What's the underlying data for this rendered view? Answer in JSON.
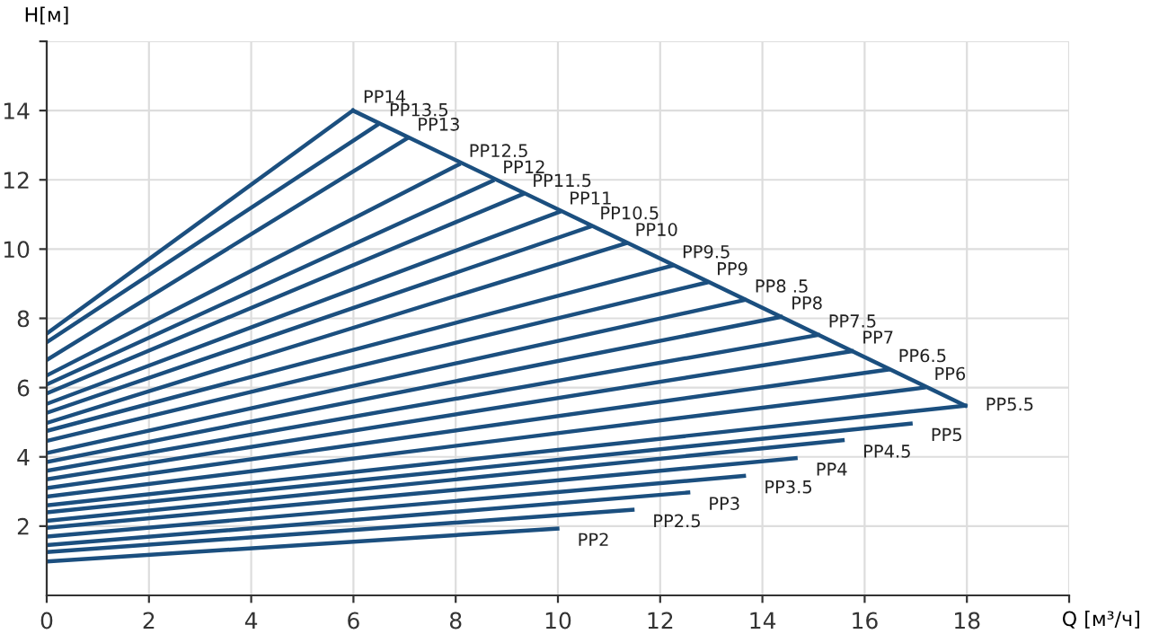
{
  "chart_data": {
    "type": "line",
    "xlabel": "Q [м³/ч]",
    "ylabel": "H[м]",
    "xlim": [
      0,
      20
    ],
    "xticks": [
      0,
      2,
      4,
      6,
      8,
      10,
      12,
      14,
      16,
      18,
      {
        "value": 20,
        "label": null
      }
    ],
    "ylim": [
      0,
      16
    ],
    "yticks": [
      2,
      4,
      6,
      8,
      10,
      12,
      14,
      {
        "value": 16,
        "label": null
      }
    ],
    "grid": true,
    "legend": false,
    "marker": "none",
    "line_style": "solid",
    "series": [
      {
        "name": "PP14",
        "color": "#1b4f7f",
        "x": [
          0,
          5.99
        ],
        "values": [
          7.56,
          14.0
        ]
      },
      {
        "name": "PP13.5",
        "color": "#1b4f7f",
        "x": [
          0,
          6.5
        ],
        "values": [
          7.31,
          13.62
        ]
      },
      {
        "name": "PP13",
        "color": "#1b4f7f",
        "x": [
          0,
          7.05
        ],
        "values": [
          6.8,
          13.2
        ]
      },
      {
        "name": "PP12.5",
        "color": "#1b4f7f",
        "x": [
          0,
          8.06
        ],
        "values": [
          6.35,
          12.44
        ]
      },
      {
        "name": "PP12",
        "color": "#1b4f7f",
        "x": [
          0,
          8.72
        ],
        "values": [
          6.09,
          11.97
        ]
      },
      {
        "name": "PP11.5",
        "color": "#1b4f7f",
        "x": [
          0,
          9.3
        ],
        "values": [
          5.83,
          11.58
        ]
      },
      {
        "name": "PP11",
        "color": "#1b4f7f",
        "x": [
          0,
          10.02
        ],
        "values": [
          5.53,
          11.07
        ]
      },
      {
        "name": "PP10.5",
        "color": "#1b4f7f",
        "x": [
          0,
          10.62
        ],
        "values": [
          5.27,
          10.64
        ]
      },
      {
        "name": "PP10",
        "color": "#1b4f7f",
        "x": [
          0,
          11.31
        ],
        "values": [
          4.98,
          10.16
        ]
      },
      {
        "name": "PP9.5",
        "color": "#1b4f7f",
        "x": [
          0,
          12.23
        ],
        "values": [
          4.75,
          9.52
        ]
      },
      {
        "name": "PP9",
        "color": "#1b4f7f",
        "x": [
          0,
          12.9
        ],
        "values": [
          4.46,
          9.03
        ]
      },
      {
        "name": "PP8 .5",
        "color": "#1b4f7f",
        "x": [
          0,
          13.65
        ],
        "values": [
          4.11,
          8.53
        ]
      },
      {
        "name": "PP8",
        "color": "#1b4f7f",
        "x": [
          0,
          14.36
        ],
        "values": [
          3.85,
          8.04
        ]
      },
      {
        "name": "PP7.5",
        "color": "#1b4f7f",
        "x": [
          0,
          15.09
        ],
        "values": [
          3.6,
          7.52
        ]
      },
      {
        "name": "PP7",
        "color": "#1b4f7f",
        "x": [
          0,
          15.75
        ],
        "values": [
          3.35,
          7.05
        ]
      },
      {
        "name": "PP6.5",
        "color": "#1b4f7f",
        "x": [
          0,
          16.46
        ],
        "values": [
          3.1,
          6.52
        ]
      },
      {
        "name": "PP6",
        "color": "#1b4f7f",
        "x": [
          0,
          17.16
        ],
        "values": [
          2.85,
          6.0
        ]
      },
      {
        "name": "PP5.5",
        "color": "#1b4f7f",
        "x": [
          0,
          17.97
        ],
        "values": [
          2.6,
          5.48
        ]
      },
      {
        "name": "PP5",
        "color": "#1b4f7f",
        "x": [
          0,
          16.9
        ],
        "values": [
          2.4,
          4.96
        ]
      },
      {
        "name": "PP4.5",
        "color": "#1b4f7f",
        "x": [
          0,
          15.57
        ],
        "values": [
          2.15,
          4.48
        ]
      },
      {
        "name": "PP4",
        "color": "#1b4f7f",
        "x": [
          0,
          14.65
        ],
        "values": [
          1.95,
          3.96
        ]
      },
      {
        "name": "PP3.5",
        "color": "#1b4f7f",
        "x": [
          0,
          13.64
        ],
        "values": [
          1.7,
          3.45
        ]
      },
      {
        "name": "PP3",
        "color": "#1b4f7f",
        "x": [
          0,
          12.55
        ],
        "values": [
          1.45,
          2.97
        ]
      },
      {
        "name": "PP2.5",
        "color": "#1b4f7f",
        "x": [
          0,
          11.46
        ],
        "values": [
          1.25,
          2.47
        ]
      },
      {
        "name": "PP2",
        "color": "#1b4f7f",
        "x": [
          0,
          9.99
        ],
        "values": [
          0.98,
          1.93
        ]
      },
      {
        "color": "#1b4f7f",
        "x": [
          5.99,
          17.97
        ],
        "values": [
          14.0,
          5.48
        ]
      }
    ]
  }
}
